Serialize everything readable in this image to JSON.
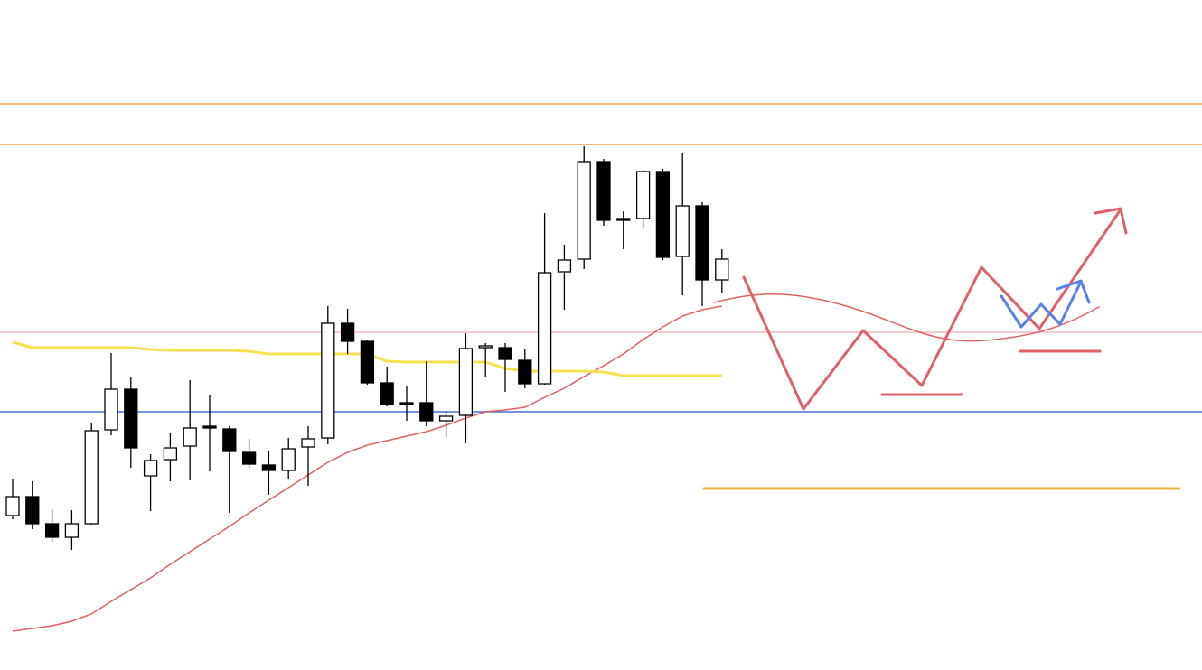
{
  "chart_data": {
    "type": "candlestick",
    "ylim": [
      0,
      742
    ],
    "open": [
      171,
      192,
      162,
      147,
      162,
      266,
      311,
      215,
      233,
      248,
      270,
      267,
      241,
      227,
      221,
      247,
      257,
      384,
      364,
      318,
      296,
      296,
      276,
      282,
      357,
      357,
      343,
      317,
      441,
      455,
      563,
      500,
      500,
      552,
      458,
      514,
      432
    ],
    "high": [
      212,
      209,
      178,
      177,
      274,
      351,
      324,
      239,
      262,
      321,
      304,
      270,
      256,
      242,
      257,
      270,
      403,
      400,
      366,
      336,
      314,
      342,
      287,
      373,
      362,
      362,
      356,
      506,
      471,
      580,
      566,
      508,
      554,
      555,
      573,
      518,
      466
    ],
    "low": [
      167,
      156,
      142,
      133,
      161,
      260,
      224,
      176,
      209,
      210,
      220,
      174,
      224,
      194,
      212,
      204,
      250,
      350,
      316,
      292,
      276,
      270,
      258,
      251,
      325,
      308,
      312,
      316,
      399,
      444,
      492,
      466,
      489,
      454,
      415,
      403,
      417
    ],
    "close": [
      192,
      162,
      147,
      162,
      265,
      311,
      246,
      232,
      246,
      268,
      269,
      242,
      228,
      221,
      245,
      256,
      384,
      364,
      318,
      294,
      294,
      276,
      281,
      356,
      359,
      344,
      317,
      440,
      454,
      563,
      498,
      498,
      552,
      457,
      514,
      432,
      455
    ],
    "up_color": "#ffffff",
    "down_color": "#000000",
    "lines": [
      {
        "color": "#e06060",
        "values": [
          43,
          46,
          49,
          54,
          62,
          76,
          89,
          102,
          117,
          131,
          145,
          159,
          174,
          188,
          202,
          216,
          230,
          241,
          249,
          254,
          259,
          264,
          271,
          279,
          286,
          288,
          291,
          302,
          312,
          325,
          337,
          350,
          366,
          380,
          392,
          399,
          403
        ]
      },
      {
        "color": "#f5e050",
        "values": [
          363,
          357,
          357,
          357,
          357,
          357,
          357,
          355,
          354,
          354,
          354,
          354,
          353,
          350,
          350,
          350,
          350,
          350,
          350,
          342,
          341,
          341,
          341,
          341,
          341,
          334,
          331,
          331,
          331,
          331,
          330,
          326,
          326,
          326,
          326,
          326,
          326
        ]
      }
    ],
    "levels": [
      {
        "value": 627,
        "color": "#f0a050"
      },
      {
        "value": 582,
        "color": "#f0a050"
      },
      {
        "value": 374,
        "color": "#f4b8c4"
      },
      {
        "value": 286,
        "color": "#4a70d0"
      }
    ]
  }
}
